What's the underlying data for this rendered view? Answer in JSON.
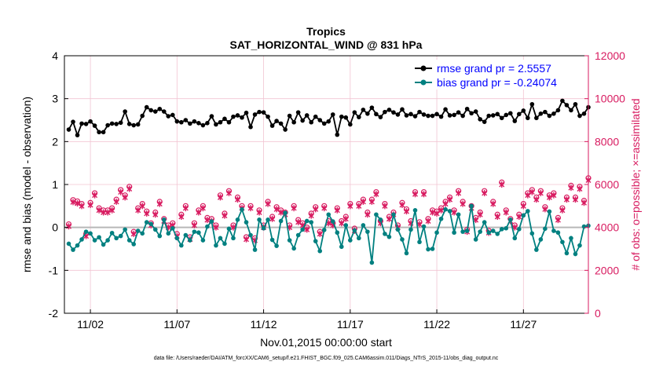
{
  "chart_data": {
    "type": "line",
    "title": "Tropics",
    "subtitle": "SAT_HORIZONTAL_WIND @ 831 hPa",
    "xlabel": "Nov.01,2015 00:00:00 start",
    "ylabel": "rmse and bias (model - observation)",
    "ylabel_right": "# of obs: o=possible; ×=assimilated",
    "footnote": "data file: /Users/raeder/DAI/ATM_forcXX/CAM6_setup/f.e21.FHIST_BGC.f09_025.CAM6assim.011/Diags_NTrS_2015-11/obs_diag_output.nc",
    "xlim": [
      0.5,
      30.75
    ],
    "ylim": [
      -2,
      4
    ],
    "ylim_right": [
      0,
      12000
    ],
    "x_ticks": [
      2,
      7,
      12,
      17,
      22,
      27
    ],
    "x_tick_labels": [
      "11/02",
      "11/07",
      "11/12",
      "11/17",
      "11/22",
      "11/27"
    ],
    "y_ticks": [
      -2,
      -1,
      0,
      1,
      2,
      3,
      4
    ],
    "y_tick_labels": [
      "-2",
      "-1",
      "0",
      "1",
      "2",
      "3",
      "4"
    ],
    "y_ticks_right": [
      0,
      2000,
      4000,
      6000,
      8000,
      10000,
      12000
    ],
    "y_tick_labels_right": [
      "0",
      "2000",
      "4000",
      "6000",
      "8000",
      "10000",
      "12000"
    ],
    "x_step_days": 0.25,
    "x_start": 0.75,
    "colors": {
      "rmse": "#000000",
      "bias": "#008080",
      "obs": "#d81b60",
      "axis_right": "#d81b60",
      "legend_text": "#0000ff",
      "grid": "#f2c4d2",
      "zero": "#b8b8b8"
    },
    "legend": [
      {
        "key": "rmse",
        "label": "rmse grand pr = 2.5557"
      },
      {
        "key": "bias",
        "label": "bias grand pr = -0.24074"
      }
    ],
    "series": [
      {
        "name": "rmse",
        "values": [
          2.28,
          2.46,
          2.15,
          2.42,
          2.41,
          2.47,
          2.37,
          2.22,
          2.22,
          2.38,
          2.42,
          2.41,
          2.44,
          2.7,
          2.41,
          2.38,
          2.4,
          2.6,
          2.8,
          2.73,
          2.7,
          2.76,
          2.7,
          2.59,
          2.62,
          2.47,
          2.45,
          2.5,
          2.42,
          2.47,
          2.43,
          2.38,
          2.43,
          2.59,
          2.4,
          2.45,
          2.53,
          2.45,
          2.58,
          2.61,
          2.56,
          2.67,
          2.34,
          2.63,
          2.69,
          2.68,
          2.58,
          2.37,
          2.48,
          2.42,
          2.28,
          2.6,
          2.45,
          2.68,
          2.49,
          2.61,
          2.45,
          2.58,
          2.5,
          2.42,
          2.47,
          2.63,
          2.16,
          2.58,
          2.56,
          2.4,
          2.68,
          2.57,
          2.74,
          2.65,
          2.79,
          2.64,
          2.57,
          2.69,
          2.74,
          2.68,
          2.63,
          2.75,
          2.61,
          2.64,
          2.59,
          2.69,
          2.63,
          2.6,
          2.6,
          2.64,
          2.58,
          2.75,
          2.61,
          2.62,
          2.68,
          2.6,
          2.76,
          2.66,
          2.7,
          2.52,
          2.46,
          2.6,
          2.61,
          2.64,
          2.55,
          2.62,
          2.66,
          2.48,
          2.64,
          2.72,
          2.55,
          2.87,
          2.55,
          2.65,
          2.69,
          2.6,
          2.65,
          2.73,
          2.95,
          2.85,
          2.73,
          2.87,
          2.6,
          2.65,
          2.8
        ]
      },
      {
        "name": "bias",
        "values": [
          -0.38,
          -0.52,
          -0.42,
          -0.28,
          -0.1,
          -0.14,
          -0.3,
          -0.23,
          -0.4,
          -0.3,
          -0.13,
          -0.25,
          -0.2,
          -0.05,
          -0.3,
          -0.39,
          -0.08,
          -0.14,
          0.12,
          0.08,
          -0.05,
          -0.2,
          0.18,
          -0.14,
          -0.02,
          -0.25,
          -0.42,
          -0.18,
          -0.3,
          -0.1,
          -0.12,
          -0.3,
          0.02,
          0.14,
          -0.42,
          -0.25,
          -0.38,
          -0.03,
          -0.25,
          0.18,
          0.42,
          0.12,
          -0.18,
          -0.52,
          0.18,
          -0.02,
          0.18,
          -0.29,
          -0.43,
          0.15,
          0.34,
          -0.3,
          -0.49,
          -0.18,
          -0.05,
          0.15,
          0.12,
          -0.32,
          -0.55,
          -0.06,
          0.3,
          0.14,
          -0.12,
          -0.45,
          0.05,
          -0.3,
          -0.07,
          -0.25,
          0.05,
          -0.1,
          -0.82,
          0.3,
          0.18,
          -0.15,
          -0.22,
          0.3,
          -0.05,
          -0.28,
          -0.6,
          -0.05,
          0.4,
          -0.34,
          0.02,
          -0.51,
          -0.5,
          -0.12,
          0.2,
          0.42,
          0.38,
          -0.12,
          0.3,
          -0.1,
          -0.08,
          0.5,
          -0.28,
          -0.1,
          0.12,
          -0.12,
          -0.08,
          -0.15,
          -0.04,
          -0.02,
          0.18,
          -0.25,
          -0.04,
          0.28,
          0.38,
          -0.14,
          -0.52,
          -0.28,
          -0.03,
          0.37,
          -0.08,
          -0.12,
          -0.34,
          -0.6,
          -0.25,
          -0.62,
          -0.42,
          0.02,
          0.04
        ]
      },
      {
        "name": "obs_possible",
        "values": [
          4150,
          5280,
          5220,
          5100,
          3700,
          5150,
          5600,
          4900,
          4800,
          4800,
          4900,
          5300,
          5750,
          5500,
          5900,
          3800,
          4900,
          5100,
          4750,
          4200,
          4700,
          5200,
          4400,
          4100,
          4200,
          3700,
          4600,
          5000,
          3550,
          4200,
          4800,
          5000,
          4450,
          4400,
          4100,
          5500,
          4650,
          5700,
          4100,
          5400,
          5000,
          3550,
          5000,
          3500,
          4800,
          4100,
          5200,
          4500,
          4950,
          4800,
          4700,
          4100,
          5000,
          4350,
          4200,
          4000,
          4650,
          4950,
          3800,
          5000,
          4300,
          4200,
          4900,
          4300,
          4500,
          5100,
          3950,
          5100,
          5300,
          4700,
          5300,
          5650,
          4300,
          5100,
          4500,
          4700,
          4100,
          5150,
          4850,
          4300,
          5650,
          4250,
          5650,
          4400,
          4800,
          4750,
          4900,
          5200,
          5400,
          4800,
          5700,
          5200,
          3900,
          5000,
          4450,
          4700,
          5700,
          3850,
          5200,
          4600,
          6100,
          4800,
          4400,
          4100,
          4600,
          5100,
          5600,
          5750,
          5400,
          5700,
          4950,
          5500,
          5600,
          4450,
          4900,
          5400,
          5950,
          5400,
          5900,
          5250,
          6300
        ]
      },
      {
        "name": "obs_assimilated",
        "values": [
          4050,
          5180,
          5120,
          5000,
          3600,
          5050,
          5500,
          4800,
          4700,
          4700,
          4800,
          5200,
          5650,
          5400,
          5800,
          3700,
          4800,
          5000,
          4650,
          4100,
          4600,
          5100,
          4300,
          4000,
          4100,
          3600,
          4500,
          4900,
          3450,
          4100,
          4700,
          4900,
          4350,
          4300,
          4000,
          5400,
          4550,
          5600,
          4000,
          5300,
          4900,
          3450,
          4900,
          3400,
          4700,
          4000,
          5100,
          4400,
          4850,
          4700,
          4600,
          4000,
          4900,
          4250,
          4100,
          3900,
          4550,
          4850,
          3700,
          4900,
          4200,
          4100,
          4800,
          4200,
          4400,
          5000,
          3850,
          5000,
          5200,
          4600,
          5200,
          5550,
          4200,
          5000,
          4400,
          4600,
          4000,
          5050,
          4750,
          4200,
          5550,
          4150,
          5550,
          4300,
          4700,
          4650,
          4800,
          5100,
          5300,
          4700,
          5600,
          5100,
          3800,
          4900,
          4350,
          4600,
          5600,
          3750,
          5100,
          4500,
          6000,
          4700,
          4300,
          4000,
          4500,
          5000,
          5500,
          5650,
          5300,
          5600,
          4850,
          5400,
          5500,
          4350,
          4800,
          5300,
          5850,
          5300,
          5800,
          5150,
          6200
        ]
      }
    ]
  }
}
